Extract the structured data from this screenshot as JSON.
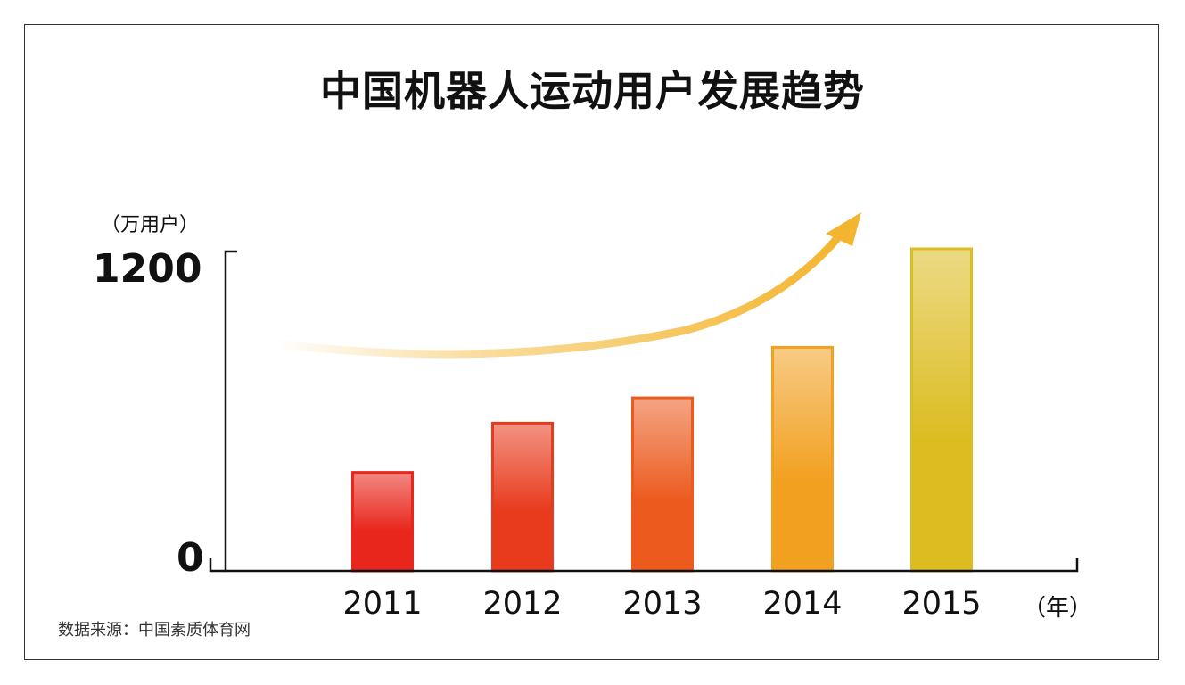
{
  "chart_data": {
    "type": "bar",
    "title": "中国机器人运动用户发展趋势",
    "y_unit": "（万用户）",
    "x_unit": "（年）",
    "y_tick_labels": [
      "1200",
      "0"
    ],
    "ylim": [
      0,
      1200
    ],
    "categories": [
      "2011",
      "2012",
      "2013",
      "2014",
      "2015"
    ],
    "values": [
      370,
      555,
      650,
      840,
      1210
    ],
    "colors": [
      "#e8261c",
      "#e83a1c",
      "#ec5a1e",
      "#f2a020",
      "#dcbc20"
    ],
    "trend_arrow": true,
    "trend_arrow_color": "#f3b52e",
    "source": "数据来源：中国素质体育网",
    "grid": false,
    "legend": "none"
  }
}
